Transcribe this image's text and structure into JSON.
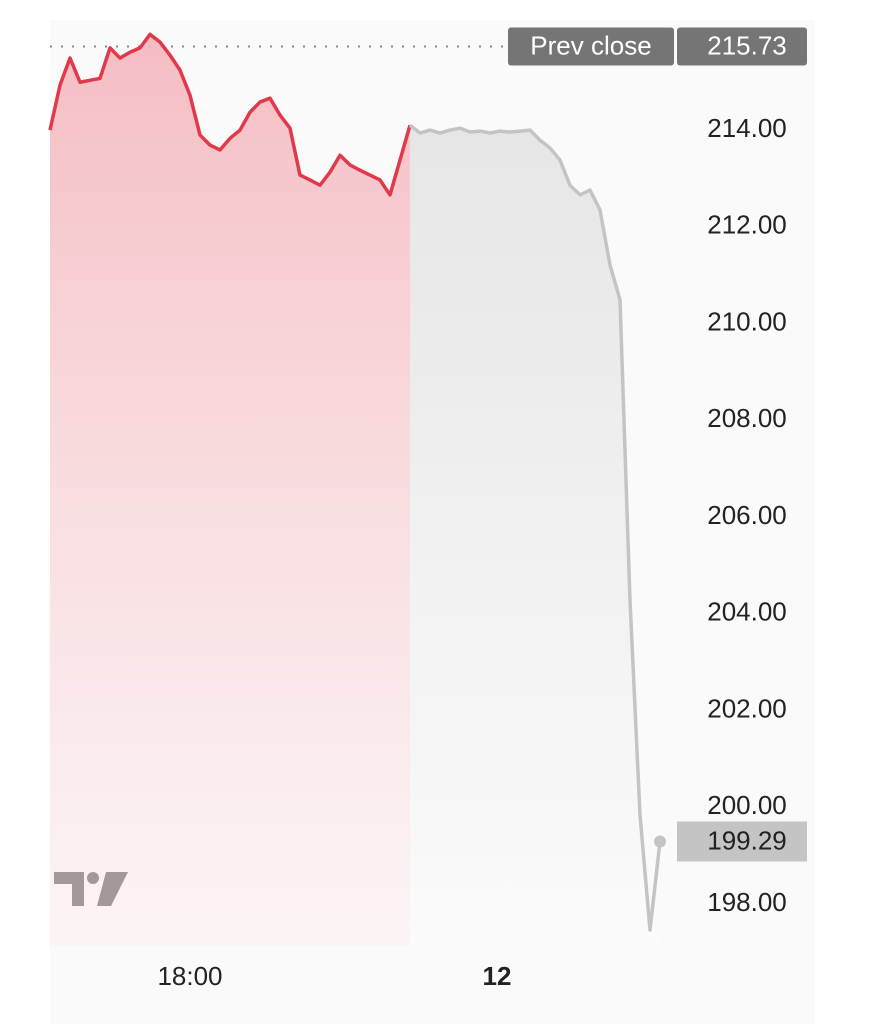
{
  "chart_data": {
    "type": "line",
    "x": [
      0,
      1,
      2,
      3,
      4,
      5,
      6,
      7,
      8,
      9,
      10,
      11,
      12,
      13,
      14,
      15,
      16,
      17,
      18,
      19,
      20,
      21,
      22,
      23,
      24,
      25,
      26,
      27,
      28,
      29,
      30,
      31,
      32,
      33,
      34,
      35,
      36,
      37,
      38,
      39,
      40,
      41,
      42,
      43,
      44,
      45,
      46,
      47,
      48,
      49,
      50,
      51,
      52,
      53,
      54,
      55,
      56,
      57,
      58,
      59,
      60,
      61
    ],
    "xlim": [
      0,
      61.5
    ],
    "xticks": [
      {
        "value": 14,
        "label": "18:00"
      },
      {
        "value": 44.7,
        "label": "12"
      }
    ],
    "ylim": [
      197.15,
      216.07
    ],
    "yticks": [
      {
        "value": 198,
        "label": "198.00"
      },
      {
        "value": 200,
        "label": "200.00"
      },
      {
        "value": 202,
        "label": "202.00"
      },
      {
        "value": 204,
        "label": "204.00"
      },
      {
        "value": 206,
        "label": "206.00"
      },
      {
        "value": 208,
        "label": "208.00"
      },
      {
        "value": 210,
        "label": "210.00"
      },
      {
        "value": 212,
        "label": "212.00"
      },
      {
        "value": 214,
        "label": "214.00"
      }
    ],
    "series": [
      {
        "color": "#e0394a",
        "values": [
          214.0,
          214.93,
          215.49,
          214.99,
          215.03,
          215.07,
          215.7,
          215.49,
          215.61,
          215.7,
          215.98,
          215.82,
          215.55,
          215.24,
          214.72,
          213.9,
          213.69,
          213.59,
          213.83,
          214.0,
          214.37,
          214.58,
          214.66,
          214.31,
          214.04,
          213.07,
          212.97,
          212.86,
          213.13,
          213.48,
          213.28,
          213.17,
          213.07,
          212.97,
          212.66,
          213.38,
          214.1,
          null,
          null,
          null,
          null,
          null,
          null,
          null,
          null,
          null,
          null,
          null,
          null,
          null,
          null,
          null,
          null,
          null,
          null,
          null,
          null,
          null,
          null,
          null,
          null,
          null
        ]
      },
      {
        "color": "#c4c4c4",
        "values": [
          null,
          null,
          null,
          null,
          null,
          null,
          null,
          null,
          null,
          null,
          null,
          null,
          null,
          null,
          null,
          null,
          null,
          null,
          null,
          null,
          null,
          null,
          null,
          null,
          null,
          null,
          null,
          null,
          null,
          null,
          null,
          null,
          null,
          null,
          null,
          null,
          214.1,
          213.94,
          214.0,
          213.94,
          214.0,
          214.04,
          213.96,
          213.98,
          213.94,
          213.98,
          213.96,
          213.98,
          214.0,
          213.79,
          213.63,
          213.38,
          212.86,
          212.66,
          212.76,
          212.35,
          211.21,
          210.49,
          204.28,
          199.84,
          197.46,
          199.29
        ]
      }
    ],
    "prev_close": {
      "label": "Prev close",
      "value": 215.73
    }
  }
}
